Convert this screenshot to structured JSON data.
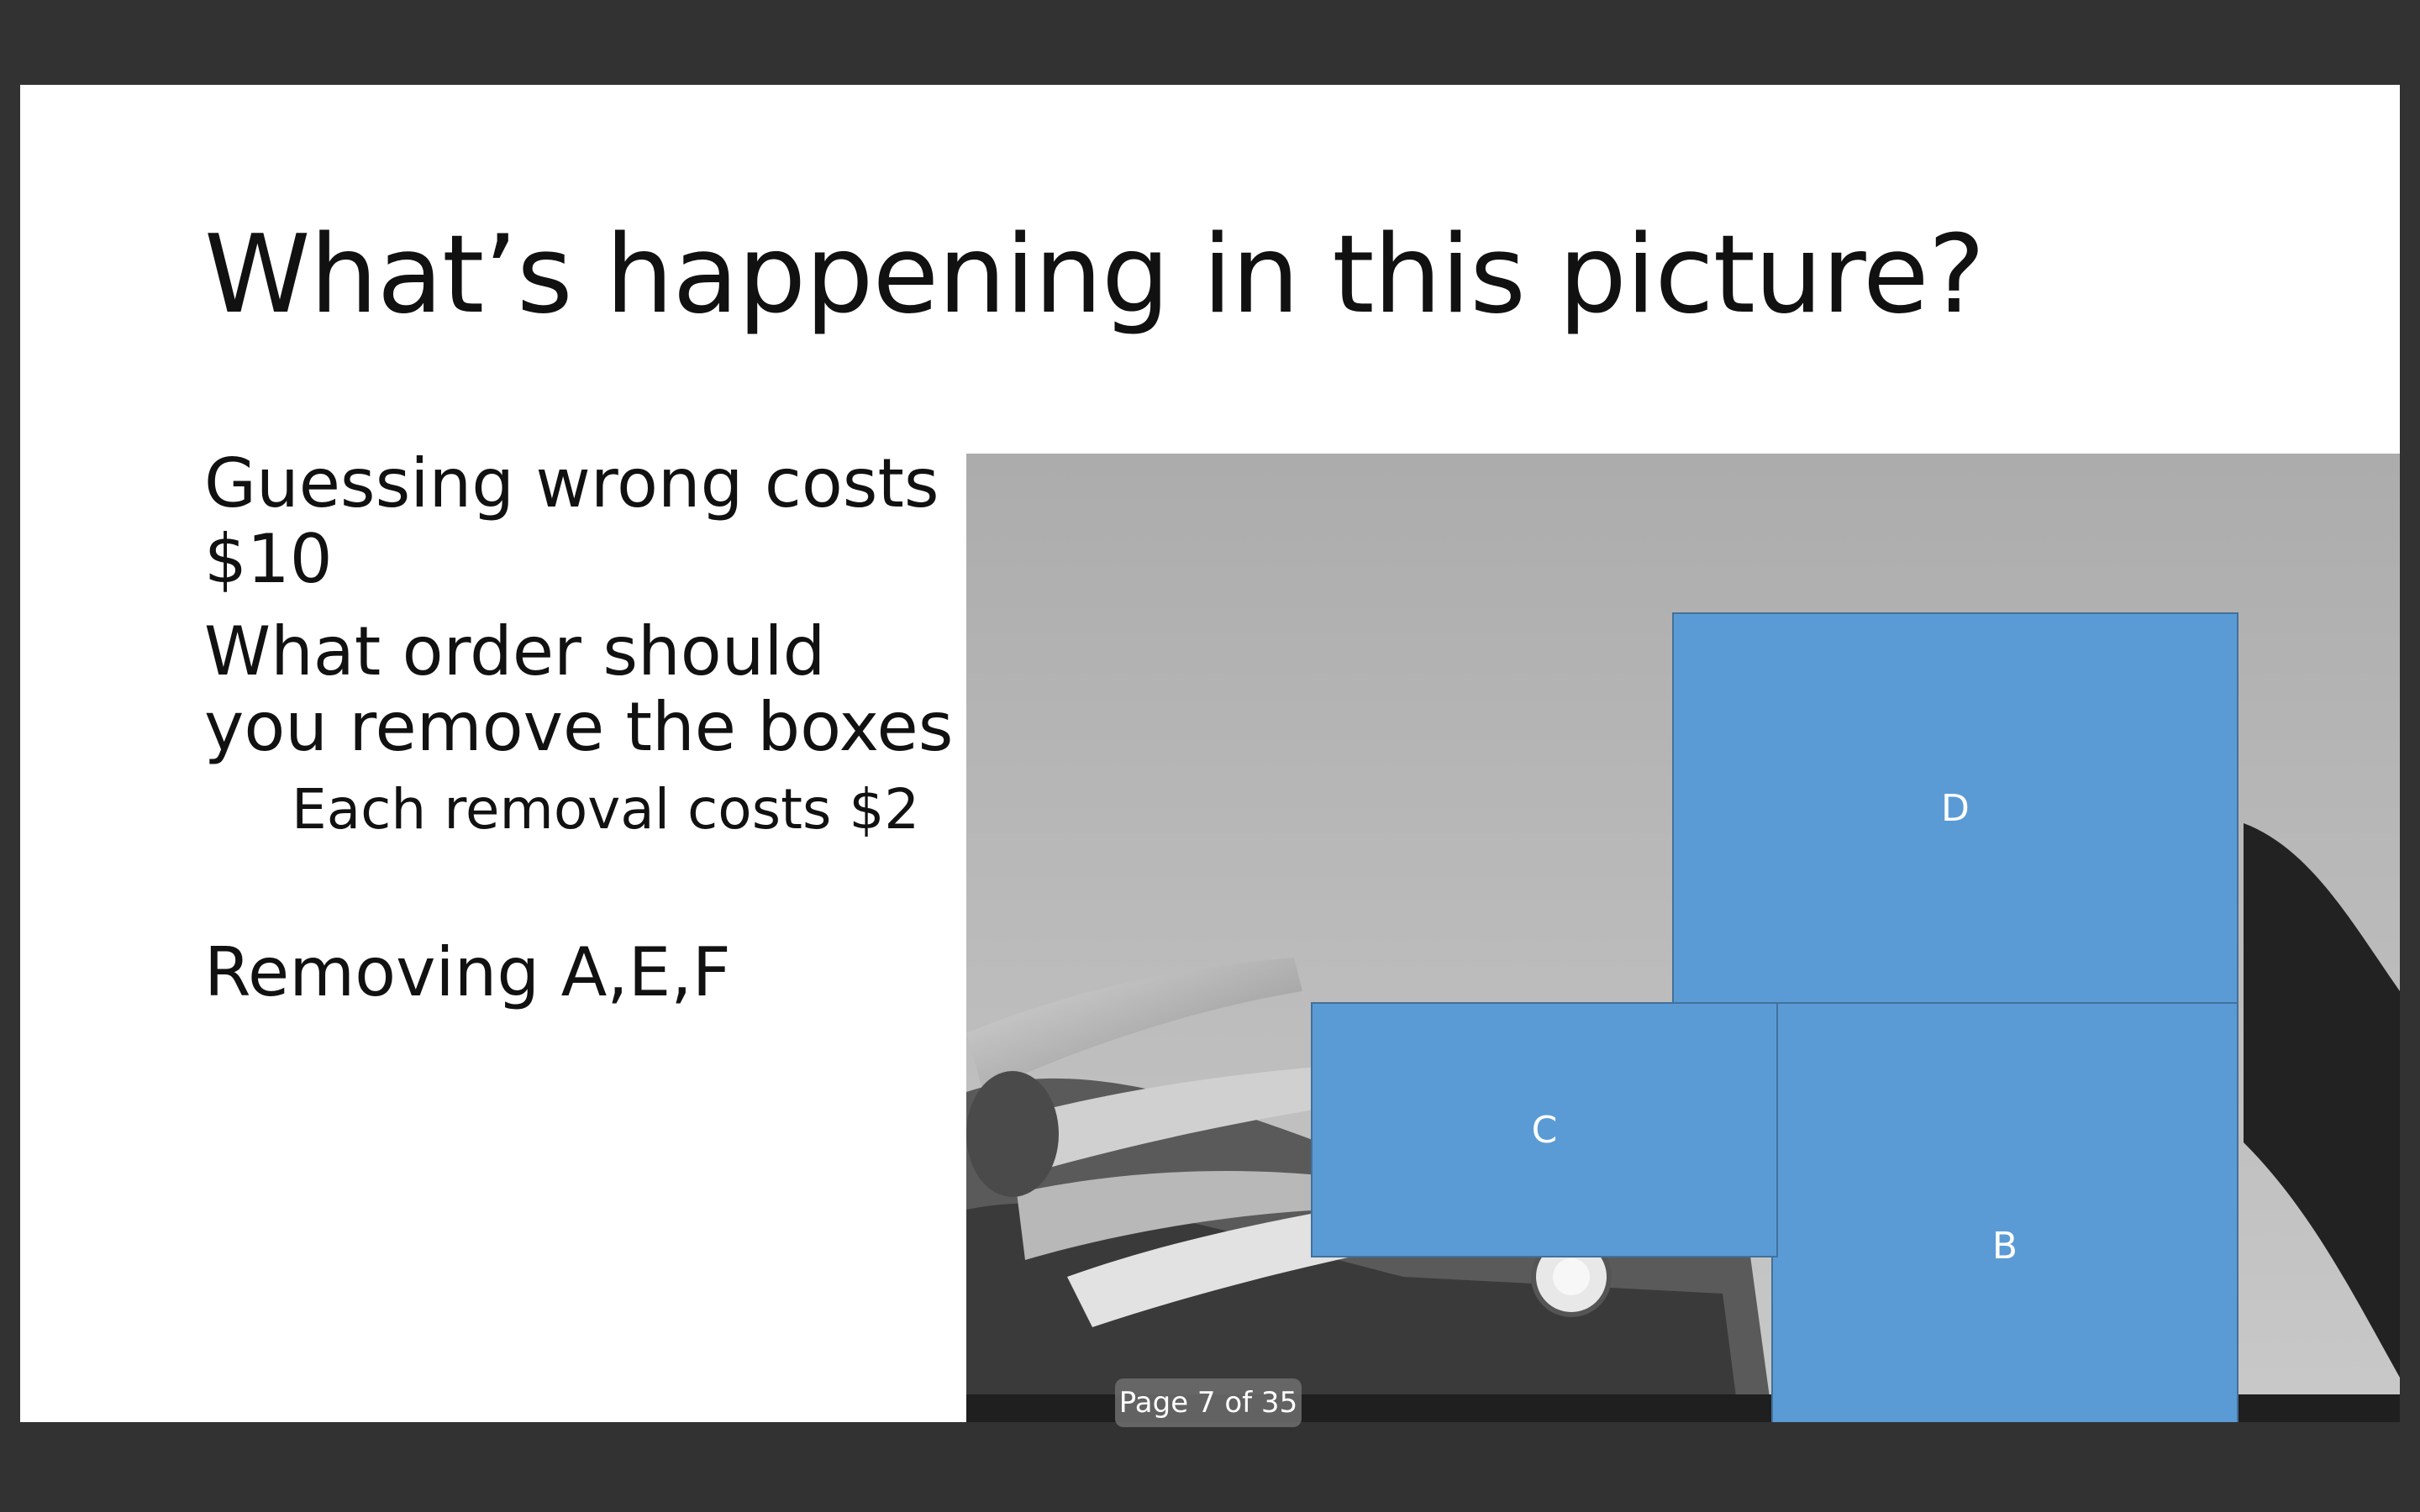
{
  "slide": {
    "title": "What’s happening in this picture?",
    "bullets": [
      {
        "text": "Guessing wrong costs $10",
        "level": 1
      },
      {
        "text": "What order should you remove the boxes",
        "level": 1
      },
      {
        "text": "Each removal costs $2",
        "level": 2
      },
      {
        "text": "Removing A,E,F",
        "level": 1
      }
    ],
    "boxes": {
      "d": "D",
      "c": "C",
      "b": "B"
    },
    "colors": {
      "box_fill": "#5b9bd5",
      "box_border": "#41719c",
      "background": "#ffffff",
      "viewer_background": "#323232"
    }
  },
  "viewer": {
    "page_indicator": "Page 7 of 35"
  }
}
